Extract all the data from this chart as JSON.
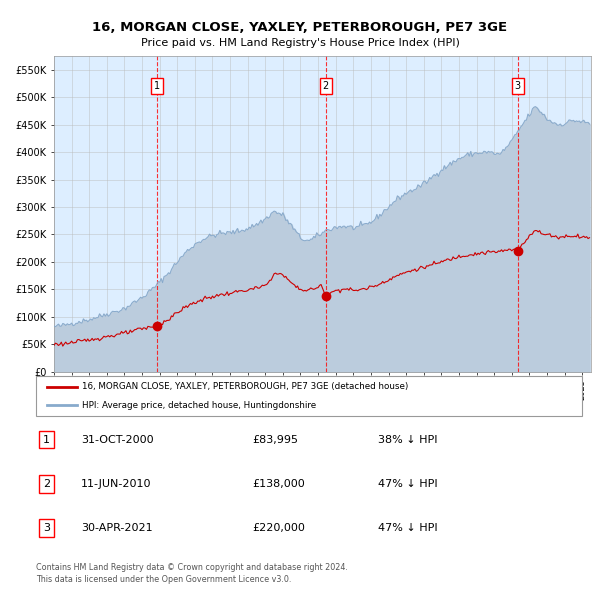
{
  "title1": "16, MORGAN CLOSE, YAXLEY, PETERBOROUGH, PE7 3GE",
  "title2": "Price paid vs. HM Land Registry's House Price Index (HPI)",
  "legend_red": "16, MORGAN CLOSE, YAXLEY, PETERBOROUGH, PE7 3GE (detached house)",
  "legend_blue": "HPI: Average price, detached house, Huntingdonshire",
  "transactions": [
    {
      "num": 1,
      "date": "31-OCT-2000",
      "price": "£83,995",
      "hpi_pct": "38% ↓ HPI",
      "date_x": 2000.83,
      "price_y": 83995
    },
    {
      "num": 2,
      "date": "11-JUN-2010",
      "price": "£138,000",
      "hpi_pct": "47% ↓ HPI",
      "date_x": 2010.44,
      "price_y": 138000
    },
    {
      "num": 3,
      "date": "30-APR-2021",
      "price": "£220,000",
      "hpi_pct": "47% ↓ HPI",
      "date_x": 2021.33,
      "price_y": 220000
    }
  ],
  "ylabel_ticks": [
    "£0",
    "£50K",
    "£100K",
    "£150K",
    "£200K",
    "£250K",
    "£300K",
    "£350K",
    "£400K",
    "£450K",
    "£500K",
    "£550K"
  ],
  "ytick_values": [
    0,
    50000,
    100000,
    150000,
    200000,
    250000,
    300000,
    350000,
    400000,
    450000,
    500000,
    550000
  ],
  "xmin": 1995.0,
  "xmax": 2025.5,
  "ymin": 0,
  "ymax": 575000,
  "plot_bg": "#ddeeff",
  "red_line_color": "#cc0000",
  "blue_line_color": "#88aacc",
  "blue_fill_color": "#bbccdd",
  "footnote1": "Contains HM Land Registry data © Crown copyright and database right 2024.",
  "footnote2": "This data is licensed under the Open Government Licence v3.0."
}
